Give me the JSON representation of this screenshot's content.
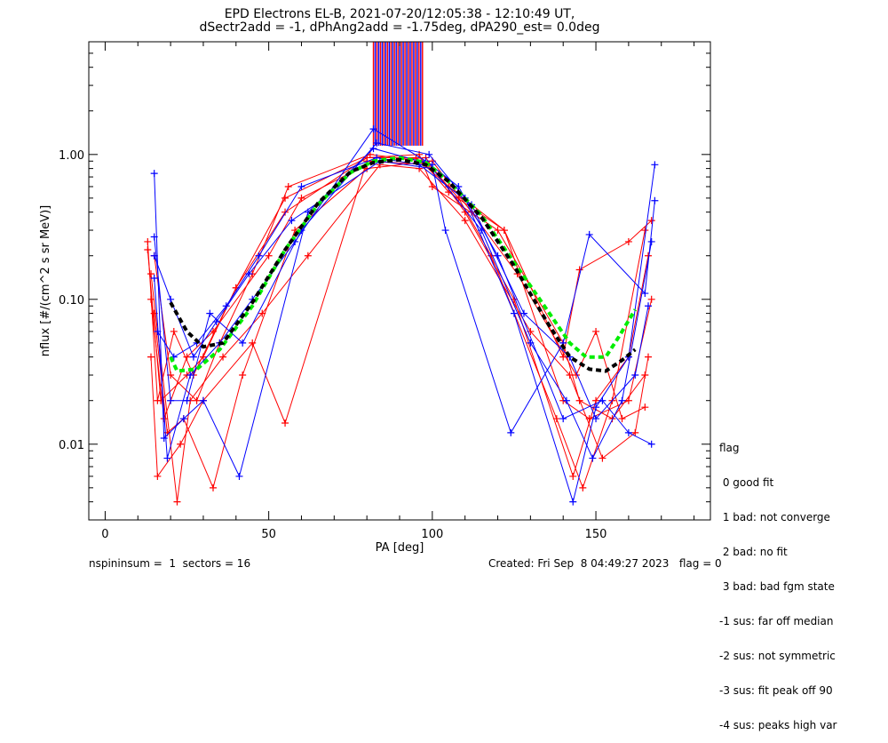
{
  "title_line1": "EPD Electrons EL-B, 2021-07-20/12:05:38 - 12:10:49 UT,",
  "title_line2": "dSectr2add = -1, dPhAng2add = -1.75deg, dPA290_est=   0.0deg",
  "footer_left": "nspininsum =  1  sectors = 16",
  "footer_right": "Created: Fri Sep  8 04:49:27 2023   flag = 0",
  "legend": {
    "title": "flag",
    "items": [
      " 0 good fit",
      " 1 bad: not converge",
      " 2 bad: no fit",
      " 3 bad: bad fgm state",
      "-1 sus: far off median",
      "-2 sus: not symmetric",
      "-3 sus: fit peak off 90",
      "-4 sus: peaks high var"
    ]
  },
  "colors": {
    "series_a": "#ff0000",
    "series_b": "#0000ff",
    "fit_green": "#00ee00",
    "fit_black": "#000000"
  },
  "chart_data": {
    "type": "line",
    "xlabel": "PA [deg]",
    "ylabel": "nflux [#/(cm^2 s sr MeV)]",
    "xlim": [
      -5,
      185
    ],
    "ylim": [
      0.003,
      6.0
    ],
    "yscale": "log",
    "x_ticks": [
      0,
      50,
      100,
      150
    ],
    "x_tick_labels": [
      "0",
      "50",
      "100",
      "150"
    ],
    "y_ticks": [
      0.01,
      0.1,
      1.0
    ],
    "y_tick_labels": [
      "0.01",
      "0.10",
      "1.00"
    ],
    "markers": "plus",
    "series": [
      {
        "color": "red",
        "points": [
          [
            13,
            0.25
          ],
          [
            16,
            0.02
          ],
          [
            21,
            0.06
          ],
          [
            27,
            0.03
          ],
          [
            40,
            0.12
          ],
          [
            55,
            0.4
          ],
          [
            80,
            0.95
          ],
          [
            96,
            1.0
          ],
          [
            100,
            0.6
          ],
          [
            120,
            0.3
          ],
          [
            140,
            0.05
          ],
          [
            145,
            0.02
          ],
          [
            155,
            0.015
          ],
          [
            165,
            0.03
          ]
        ]
      },
      {
        "color": "red",
        "points": [
          [
            14,
            0.1
          ],
          [
            18,
            0.015
          ],
          [
            25,
            0.04
          ],
          [
            33,
            0.06
          ],
          [
            50,
            0.2
          ],
          [
            60,
            0.5
          ],
          [
            82,
            0.9
          ],
          [
            98,
            0.95
          ],
          [
            110,
            0.4
          ],
          [
            125,
            0.1
          ],
          [
            143,
            0.006
          ],
          [
            150,
            0.02
          ],
          [
            160,
            0.04
          ],
          [
            166,
            0.2
          ]
        ]
      },
      {
        "color": "red",
        "points": [
          [
            14,
            0.04
          ],
          [
            16,
            0.006
          ],
          [
            23,
            0.01
          ],
          [
            30,
            0.02
          ],
          [
            45,
            0.05
          ],
          [
            55,
            0.014
          ],
          [
            80,
            0.9
          ],
          [
            99,
            0.85
          ],
          [
            108,
            0.5
          ],
          [
            118,
            0.2
          ],
          [
            138,
            0.015
          ],
          [
            146,
            0.005
          ],
          [
            155,
            0.02
          ],
          [
            165,
            0.3
          ]
        ]
      },
      {
        "color": "red",
        "points": [
          [
            15,
            0.2
          ],
          [
            20,
            0.03
          ],
          [
            28,
            0.02
          ],
          [
            35,
            0.05
          ],
          [
            45,
            0.15
          ],
          [
            56,
            0.6
          ],
          [
            81,
            1.0
          ],
          [
            97,
            0.9
          ],
          [
            105,
            0.55
          ],
          [
            122,
            0.3
          ],
          [
            140,
            0.02
          ],
          [
            148,
            0.015
          ],
          [
            160,
            0.02
          ],
          [
            167,
            0.1
          ]
        ]
      },
      {
        "color": "red",
        "points": [
          [
            14,
            0.15
          ],
          [
            22,
            0.004
          ],
          [
            26,
            0.02
          ],
          [
            36,
            0.04
          ],
          [
            48,
            0.08
          ],
          [
            62,
            0.2
          ],
          [
            84,
            0.85
          ],
          [
            96,
            0.8
          ],
          [
            110,
            0.35
          ],
          [
            130,
            0.06
          ],
          [
            142,
            0.03
          ],
          [
            152,
            0.008
          ],
          [
            162,
            0.012
          ],
          [
            166,
            0.04
          ]
        ]
      },
      {
        "color": "red",
        "points": [
          [
            15,
            0.08
          ],
          [
            19,
            0.012
          ],
          [
            24,
            0.015
          ],
          [
            33,
            0.005
          ],
          [
            42,
            0.03
          ],
          [
            58,
            0.3
          ],
          [
            80,
            0.8
          ],
          [
            100,
            0.9
          ],
          [
            112,
            0.4
          ],
          [
            126,
            0.15
          ],
          [
            144,
            0.03
          ],
          [
            150,
            0.06
          ],
          [
            158,
            0.015
          ],
          [
            165,
            0.018
          ]
        ]
      },
      {
        "color": "red",
        "points": [
          [
            13,
            0.22
          ],
          [
            17,
            0.02
          ],
          [
            25,
            0.03
          ],
          [
            30,
            0.04
          ],
          [
            40,
            0.12
          ],
          [
            55,
            0.5
          ],
          [
            80,
            0.95
          ],
          [
            95,
            0.95
          ],
          [
            105,
            0.6
          ],
          [
            122,
            0.3
          ],
          [
            140,
            0.04
          ],
          [
            145,
            0.16
          ],
          [
            160,
            0.25
          ],
          [
            167,
            0.35
          ]
        ]
      },
      {
        "color": "blue",
        "points": [
          [
            15,
            0.27
          ],
          [
            20,
            0.02
          ],
          [
            25,
            0.02
          ],
          [
            32,
            0.08
          ],
          [
            42,
            0.05
          ],
          [
            60,
            0.3
          ],
          [
            83,
            1.2
          ],
          [
            99,
            1.0
          ],
          [
            110,
            0.5
          ],
          [
            125,
            0.08
          ],
          [
            143,
            0.004
          ],
          [
            150,
            0.018
          ],
          [
            160,
            0.04
          ],
          [
            168,
            0.85
          ]
        ]
      },
      {
        "color": "blue",
        "points": [
          [
            15,
            0.74
          ],
          [
            18,
            0.011
          ],
          [
            24,
            0.015
          ],
          [
            30,
            0.02
          ],
          [
            41,
            0.006
          ],
          [
            62,
            0.4
          ],
          [
            82,
            1.1
          ],
          [
            100,
            0.85
          ],
          [
            104,
            0.3
          ],
          [
            124,
            0.012
          ],
          [
            140,
            0.05
          ],
          [
            148,
            0.28
          ],
          [
            165,
            0.11
          ],
          [
            168,
            0.48
          ]
        ]
      },
      {
        "color": "blue",
        "points": [
          [
            15,
            0.14
          ],
          [
            19,
            0.008
          ],
          [
            26,
            0.03
          ],
          [
            35,
            0.05
          ],
          [
            45,
            0.1
          ],
          [
            58,
            0.25
          ],
          [
            82,
            1.5
          ],
          [
            98,
            0.9
          ],
          [
            108,
            0.6
          ],
          [
            120,
            0.2
          ],
          [
            140,
            0.015
          ],
          [
            152,
            0.02
          ],
          [
            160,
            0.012
          ],
          [
            167,
            0.01
          ]
        ]
      },
      {
        "color": "blue",
        "points": [
          [
            16,
            0.06
          ],
          [
            21,
            0.04
          ],
          [
            28,
            0.05
          ],
          [
            37,
            0.09
          ],
          [
            47,
            0.2
          ],
          [
            60,
            0.6
          ],
          [
            83,
            0.95
          ],
          [
            96,
            0.85
          ],
          [
            112,
            0.45
          ],
          [
            128,
            0.08
          ],
          [
            142,
            0.04
          ],
          [
            150,
            0.015
          ],
          [
            162,
            0.03
          ],
          [
            166,
            0.09
          ]
        ]
      },
      {
        "color": "blue",
        "points": [
          [
            15,
            0.2
          ],
          [
            20,
            0.1
          ],
          [
            27,
            0.04
          ],
          [
            34,
            0.07
          ],
          [
            44,
            0.15
          ],
          [
            57,
            0.35
          ],
          [
            84,
            0.9
          ],
          [
            100,
            0.8
          ],
          [
            115,
            0.3
          ],
          [
            130,
            0.05
          ],
          [
            141,
            0.02
          ],
          [
            149,
            0.008
          ],
          [
            158,
            0.02
          ],
          [
            167,
            0.25
          ]
        ]
      }
    ],
    "spike_x_range": [
      82,
      97
    ],
    "fits": [
      {
        "color": "green",
        "style": "dashed",
        "points": [
          [
            20,
            0.04
          ],
          [
            22,
            0.032
          ],
          [
            28,
            0.033
          ],
          [
            35,
            0.045
          ],
          [
            45,
            0.09
          ],
          [
            55,
            0.22
          ],
          [
            65,
            0.45
          ],
          [
            75,
            0.75
          ],
          [
            82,
            0.9
          ],
          [
            90,
            0.95
          ],
          [
            98,
            0.88
          ],
          [
            105,
            0.65
          ],
          [
            115,
            0.38
          ],
          [
            125,
            0.18
          ],
          [
            135,
            0.085
          ],
          [
            142,
            0.05
          ],
          [
            147,
            0.04
          ],
          [
            153,
            0.04
          ],
          [
            157,
            0.055
          ],
          [
            162,
            0.085
          ]
        ]
      },
      {
        "color": "black",
        "style": "dashed",
        "points": [
          [
            20,
            0.095
          ],
          [
            25,
            0.06
          ],
          [
            30,
            0.047
          ],
          [
            36,
            0.05
          ],
          [
            45,
            0.095
          ],
          [
            55,
            0.22
          ],
          [
            65,
            0.46
          ],
          [
            75,
            0.76
          ],
          [
            82,
            0.88
          ],
          [
            90,
            0.92
          ],
          [
            98,
            0.85
          ],
          [
            105,
            0.65
          ],
          [
            115,
            0.37
          ],
          [
            125,
            0.17
          ],
          [
            135,
            0.07
          ],
          [
            142,
            0.04
          ],
          [
            148,
            0.033
          ],
          [
            153,
            0.032
          ],
          [
            158,
            0.038
          ],
          [
            162,
            0.045
          ]
        ]
      }
    ]
  }
}
